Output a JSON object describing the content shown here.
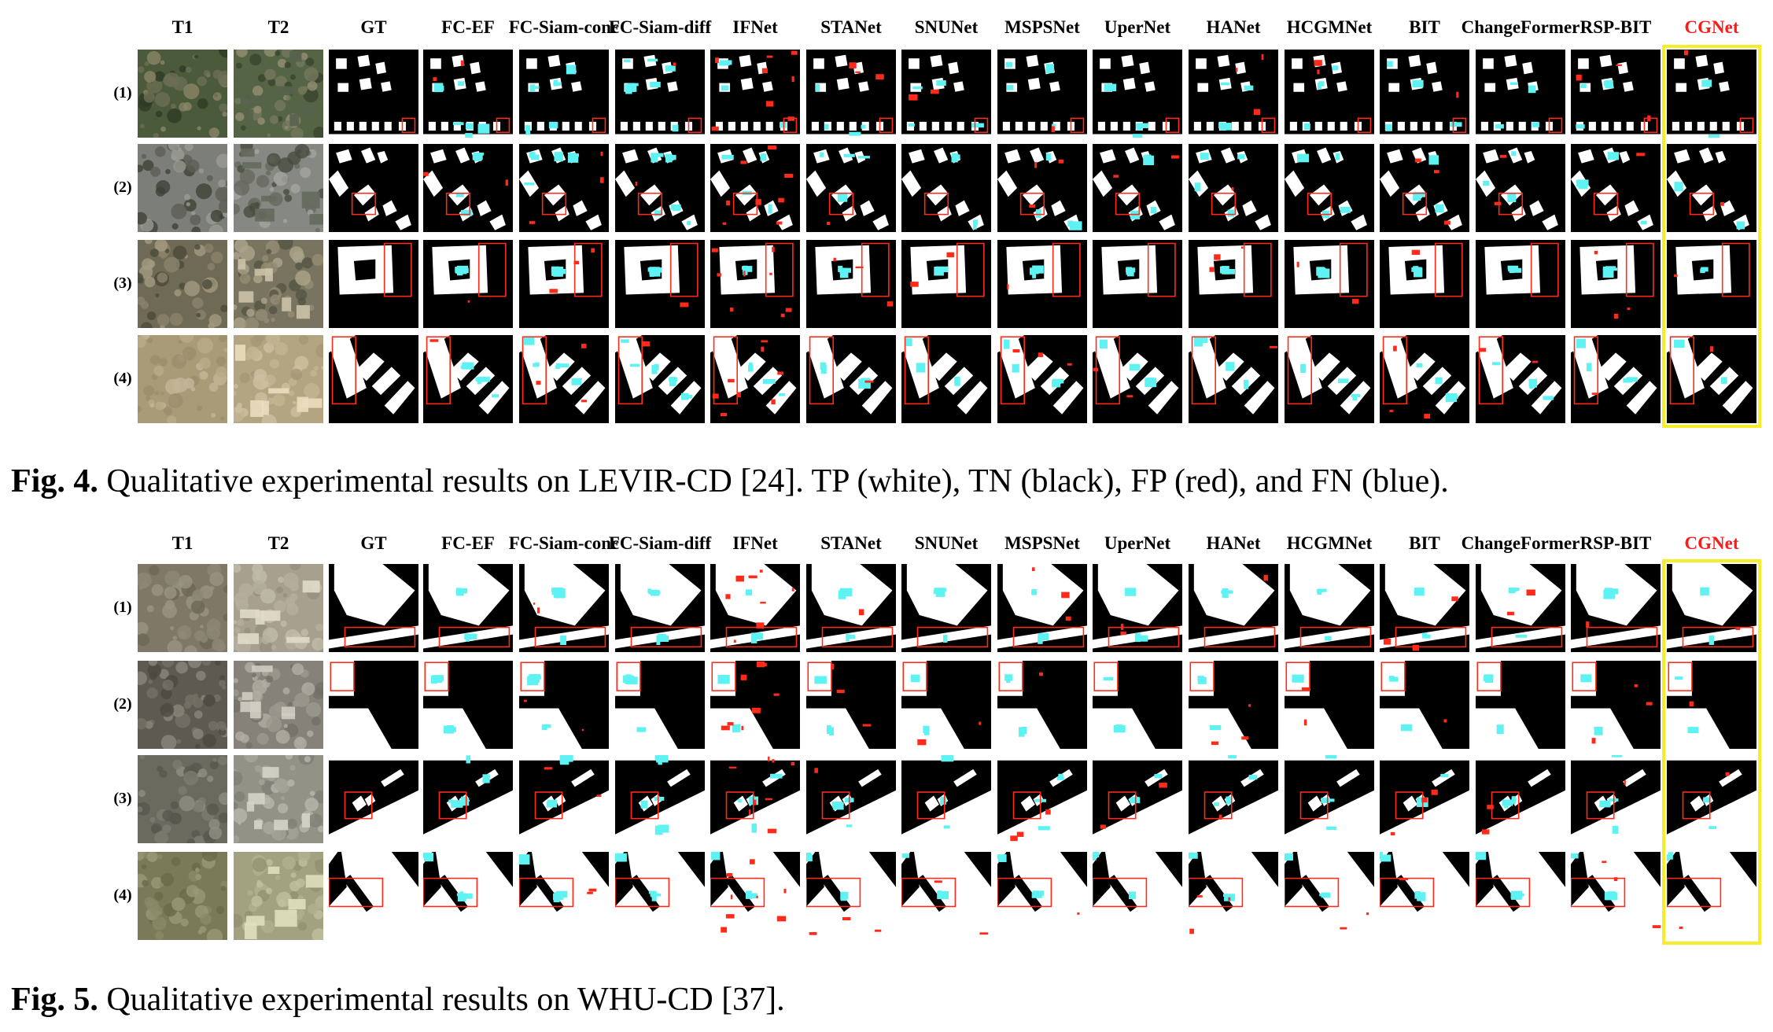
{
  "colors": {
    "tp": "#ffffff",
    "tn": "#000000",
    "fp": "#ff2a1a",
    "fn": "#5ff2f2",
    "box": "#ff2a1a",
    "highlight": "#f5ec2a",
    "ours": "#ff1a1a"
  },
  "figures": [
    {
      "id": "fig4",
      "columns": [
        "T1",
        "T2",
        "GT",
        "FC-EF",
        "FC-Siam-conc",
        "FC-Siam-diff",
        "IFNet",
        "STANet",
        "SNUNet",
        "MSPSNet",
        "UperNet",
        "HANet",
        "HCGMNet",
        "BIT",
        "ChangeFormer",
        "RSP-BIT",
        "CGNet"
      ],
      "rows": [
        "(1)",
        "(2)",
        "(3)",
        "(4)"
      ],
      "caption_label": "Fig. 4.",
      "caption_text": " Qualitative experimental results on LEVIR-CD [24]. TP (white), TN (black), FP (red), and FN (blue)."
    },
    {
      "id": "fig5",
      "columns": [
        "T1",
        "T2",
        "GT",
        "FC-EF",
        "FC-Siam-conc",
        "FC-Siam-diff",
        "IFNet",
        "STANet",
        "SNUNet",
        "MSPSNet",
        "UperNet",
        "HANet",
        "HCGMNet",
        "BIT",
        "ChangeFormer",
        "RSP-BIT",
        "CGNet"
      ],
      "rows": [
        "(1)",
        "(2)",
        "(3)",
        "(4)"
      ],
      "caption_label": "Fig. 5.",
      "caption_text": " Qualitative experimental results on WHU-CD [37]."
    }
  ]
}
